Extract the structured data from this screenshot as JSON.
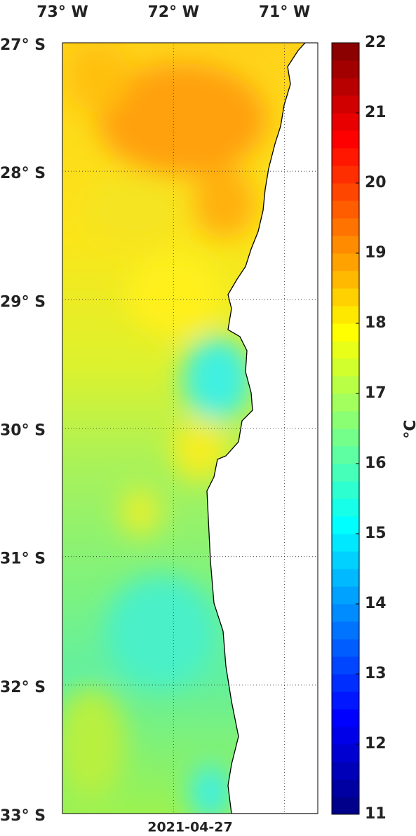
{
  "map": {
    "extent": {
      "lon": [
        -73,
        -70.7
      ],
      "lat": [
        -33,
        -27
      ]
    },
    "lon_ticks": [
      {
        "value": -73,
        "label": "73° W"
      },
      {
        "value": -72,
        "label": "72° W"
      },
      {
        "value": -71,
        "label": "71° W"
      }
    ],
    "lat_ticks": [
      {
        "value": -27,
        "label": "27° S"
      },
      {
        "value": -28,
        "label": "28° S"
      },
      {
        "value": -29,
        "label": "29° S"
      },
      {
        "value": -30,
        "label": "30° S"
      },
      {
        "value": -31,
        "label": "31° S"
      },
      {
        "value": -32,
        "label": "32° S"
      },
      {
        "value": -33,
        "label": "33° S"
      }
    ],
    "date": "2021-04-27",
    "colorbar": {
      "range": [
        11,
        22
      ],
      "ticks": [
        11,
        12,
        13,
        14,
        15,
        16,
        17,
        18,
        19,
        20,
        21,
        22
      ],
      "label": "°C"
    }
  }
}
